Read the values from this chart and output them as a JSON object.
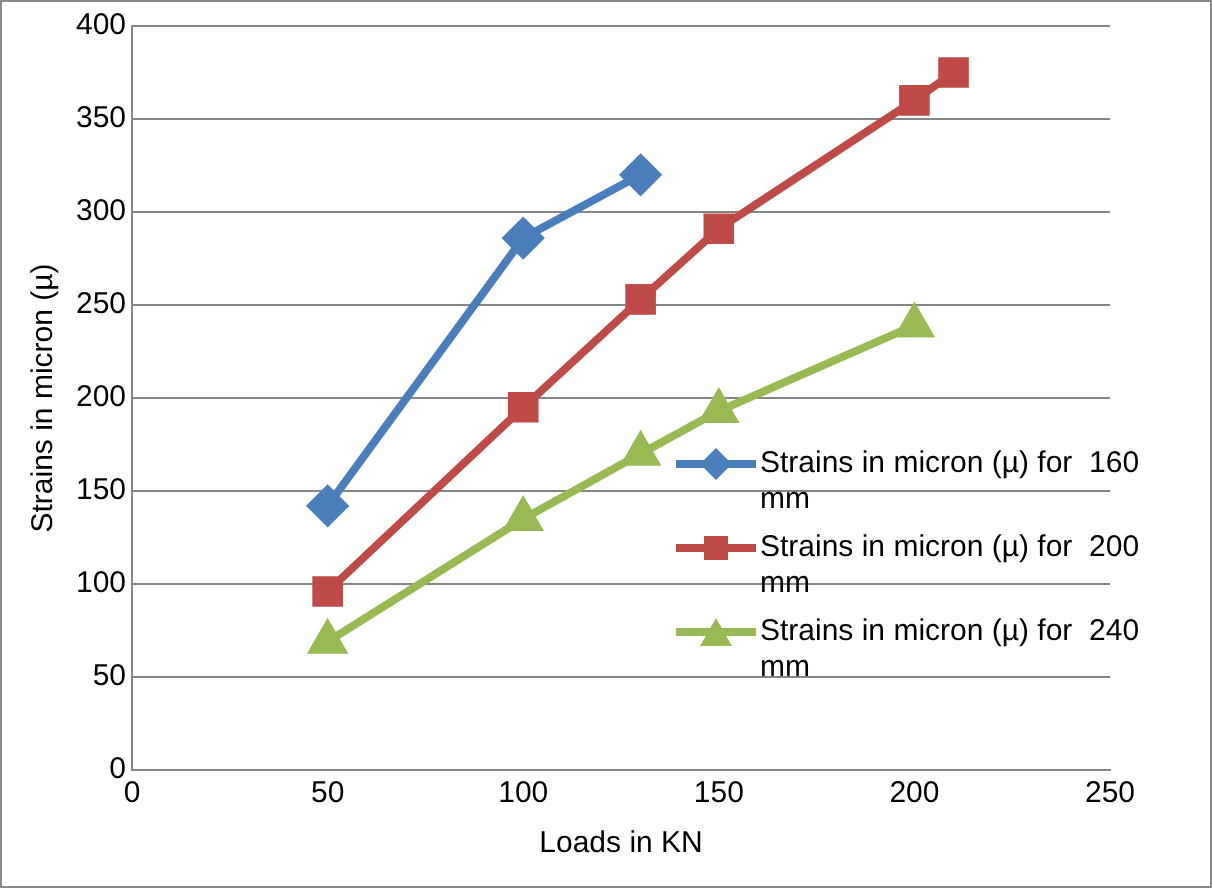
{
  "chart_data": {
    "type": "line",
    "xlabel": "Loads in KN",
    "ylabel": "Strains in micron (µ)",
    "xlim": [
      0,
      250
    ],
    "xticks": [
      0,
      50,
      100,
      150,
      200,
      250
    ],
    "ylim": [
      0,
      400
    ],
    "yticks": [
      0,
      50,
      100,
      150,
      200,
      250,
      300,
      350,
      400
    ],
    "grid": "y",
    "legend": "right",
    "line_style": "solid",
    "series": [
      {
        "name": "Strains in micron (µ) for  160 mm",
        "color": "#4a7ebb",
        "marker": "diamond",
        "x": [
          50,
          100,
          130
        ],
        "values": [
          142,
          286,
          320
        ]
      },
      {
        "name": "Strains in micron (µ) for  200 mm",
        "color": "#be4b48",
        "marker": "square",
        "x": [
          50,
          100,
          130,
          150,
          200,
          210
        ],
        "values": [
          96,
          195,
          253,
          291,
          360,
          375
        ]
      },
      {
        "name": "Strains in micron (µ) for  240 mm",
        "color": "#98b954",
        "marker": "triangle",
        "x": [
          50,
          100,
          130,
          150,
          200
        ],
        "values": [
          69,
          135,
          170,
          193,
          239
        ]
      }
    ]
  }
}
